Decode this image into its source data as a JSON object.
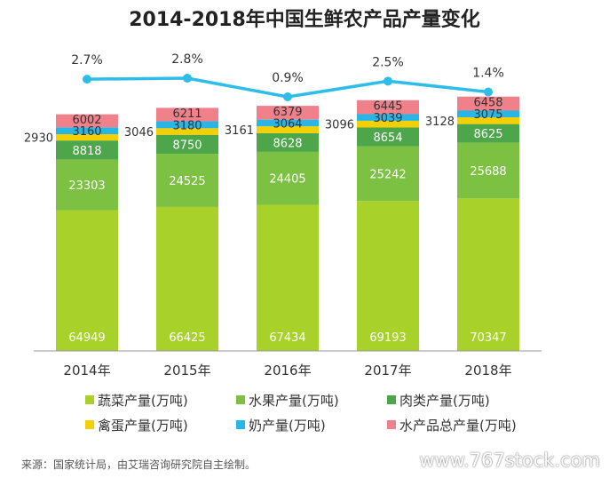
{
  "chart_data": {
    "type": "bar",
    "title": "2014-2018年中国生鲜农产品产量变化",
    "categories": [
      "2014年",
      "2015年",
      "2016年",
      "2017年",
      "2018年"
    ],
    "series": [
      {
        "name": "蔬菜产量(万吨)",
        "color": "#a8d12a",
        "values": [
          64949,
          66425,
          67434,
          69193,
          70347
        ]
      },
      {
        "name": "水果产量(万吨)",
        "color": "#7cc142",
        "values": [
          23303,
          24525,
          24405,
          25242,
          25688
        ]
      },
      {
        "name": "肉类产量(万吨)",
        "color": "#4ea64a",
        "values": [
          8818,
          8750,
          8628,
          8654,
          8625
        ]
      },
      {
        "name": "禽蛋产量(万吨)",
        "color": "#f5d000",
        "values": [
          2930,
          3046,
          3161,
          3096,
          3128
        ]
      },
      {
        "name": "奶产量(万吨)",
        "color": "#27b7e6",
        "values": [
          3160,
          3180,
          3064,
          3039,
          3075
        ]
      },
      {
        "name": "水产品总产量(万吨)",
        "color": "#f0818b",
        "values": [
          6002,
          6211,
          6379,
          6445,
          6458
        ]
      }
    ],
    "growth_line": {
      "color": "#2dbde8",
      "labels": [
        "2.7%",
        "2.8%",
        "0.9%",
        "2.5%",
        "1.4%"
      ],
      "values": [
        2.7,
        2.8,
        0.9,
        2.5,
        1.4
      ]
    },
    "grid": false,
    "legend_position": "bottom"
  },
  "source": "来源：国家统计局，由艾瑞咨询研究院自主绘制。",
  "watermark": "www.767stock.com"
}
